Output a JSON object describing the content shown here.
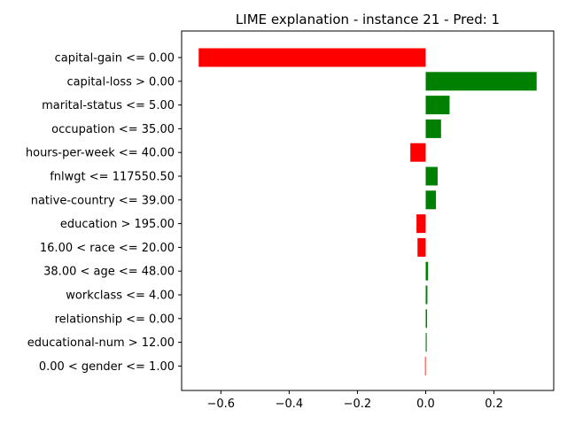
{
  "chart_data": {
    "type": "bar",
    "orientation": "horizontal",
    "title": "LIME explanation - instance 21 - Pred: 1",
    "xlabel": "",
    "ylabel": "",
    "categories": [
      "capital-gain <= 0.00",
      "capital-loss > 0.00",
      "marital-status <= 5.00",
      "occupation <= 35.00",
      "hours-per-week <= 40.00",
      "fnlwgt <= 117550.50",
      "native-country <= 39.00",
      "education > 195.00",
      "16.00 < race <= 20.00",
      "38.00 < age <= 48.00",
      "workclass <= 4.00",
      "relationship <= 0.00",
      "educational-num > 12.00",
      "0.00 < gender <= 1.00"
    ],
    "values": [
      -0.665,
      0.325,
      0.07,
      0.045,
      -0.045,
      0.035,
      0.03,
      -0.027,
      -0.024,
      0.007,
      0.005,
      0.004,
      0.003,
      -0.002
    ],
    "xlim": [
      -0.715,
      0.375
    ],
    "xticks": [
      -0.6,
      -0.4,
      -0.2,
      0.0,
      0.2
    ],
    "xtick_labels": [
      "−0.6",
      "−0.4",
      "−0.2",
      "0.0",
      "0.2"
    ],
    "grid": false,
    "colors": {
      "positive": "#008000",
      "negative": "#ff0000"
    }
  }
}
